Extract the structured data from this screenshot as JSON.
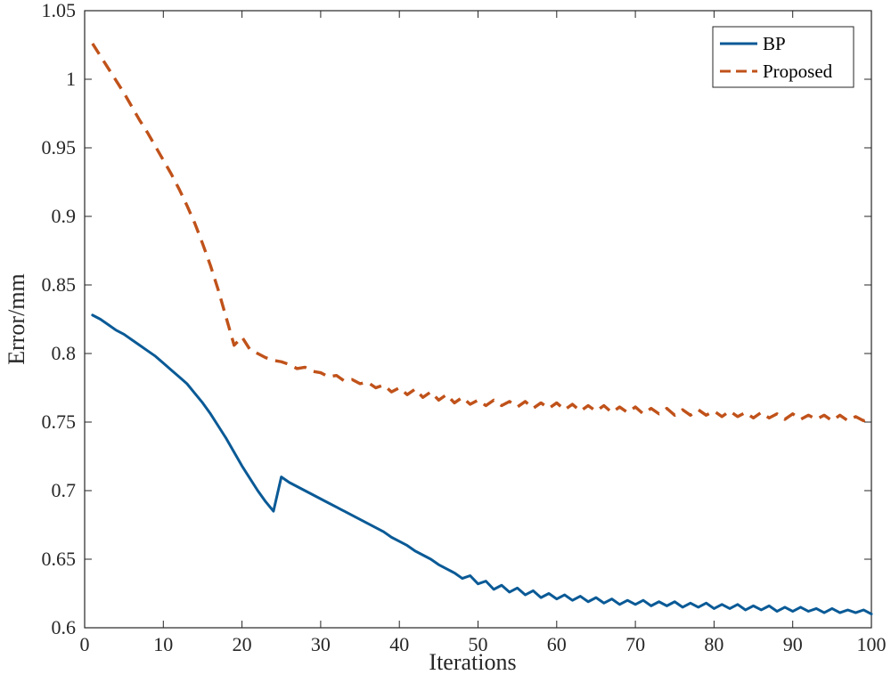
{
  "chart_data": {
    "type": "line",
    "title": "",
    "xlabel": "Iterations",
    "ylabel": "Error/mm",
    "xlim": [
      0,
      100
    ],
    "ylim": [
      0.6,
      1.05
    ],
    "xticks": [
      0,
      10,
      20,
      30,
      40,
      50,
      60,
      70,
      80,
      90,
      100
    ],
    "yticks": [
      0.6,
      0.65,
      0.7,
      0.75,
      0.8,
      0.85,
      0.9,
      0.95,
      1,
      1.05
    ],
    "ytick_labels": [
      "0.6",
      "0.65",
      "0.7",
      "0.75",
      "0.8",
      "0.85",
      "0.9",
      "0.95",
      "1",
      "1.05"
    ],
    "grid": false,
    "legend_position": "top-right",
    "series": [
      {
        "name": "BP",
        "color": "#0a5a96",
        "style": "solid",
        "x": [
          1,
          2,
          3,
          4,
          5,
          6,
          7,
          8,
          9,
          10,
          11,
          12,
          13,
          14,
          15,
          16,
          17,
          18,
          19,
          20,
          21,
          22,
          23,
          24,
          25,
          26,
          27,
          28,
          29,
          30,
          31,
          32,
          33,
          34,
          35,
          36,
          37,
          38,
          39,
          40,
          41,
          42,
          43,
          44,
          45,
          46,
          47,
          48,
          49,
          50,
          51,
          52,
          53,
          54,
          55,
          56,
          57,
          58,
          59,
          60,
          61,
          62,
          63,
          64,
          65,
          66,
          67,
          68,
          69,
          70,
          71,
          72,
          73,
          74,
          75,
          76,
          77,
          78,
          79,
          80,
          81,
          82,
          83,
          84,
          85,
          86,
          87,
          88,
          89,
          90,
          91,
          92,
          93,
          94,
          95,
          96,
          97,
          98,
          99,
          100
        ],
        "y": [
          0.828,
          0.825,
          0.821,
          0.817,
          0.814,
          0.81,
          0.806,
          0.802,
          0.798,
          0.793,
          0.788,
          0.783,
          0.778,
          0.771,
          0.764,
          0.756,
          0.747,
          0.738,
          0.728,
          0.718,
          0.709,
          0.7,
          0.692,
          0.685,
          0.71,
          0.706,
          0.703,
          0.7,
          0.697,
          0.694,
          0.691,
          0.688,
          0.685,
          0.682,
          0.679,
          0.676,
          0.673,
          0.67,
          0.666,
          0.663,
          0.66,
          0.656,
          0.653,
          0.65,
          0.646,
          0.643,
          0.64,
          0.636,
          0.638,
          0.632,
          0.634,
          0.628,
          0.631,
          0.626,
          0.629,
          0.624,
          0.627,
          0.622,
          0.625,
          0.621,
          0.624,
          0.62,
          0.623,
          0.619,
          0.622,
          0.618,
          0.621,
          0.617,
          0.62,
          0.617,
          0.62,
          0.616,
          0.619,
          0.616,
          0.619,
          0.615,
          0.618,
          0.615,
          0.618,
          0.614,
          0.617,
          0.614,
          0.617,
          0.613,
          0.616,
          0.613,
          0.616,
          0.612,
          0.615,
          0.612,
          0.615,
          0.612,
          0.614,
          0.611,
          0.614,
          0.611,
          0.613,
          0.611,
          0.613,
          0.61
        ]
      },
      {
        "name": "Proposed",
        "color": "#c0521a",
        "style": "dashed",
        "x": [
          1,
          2,
          3,
          4,
          5,
          6,
          7,
          8,
          9,
          10,
          11,
          12,
          13,
          14,
          15,
          16,
          17,
          18,
          19,
          20,
          21,
          22,
          23,
          24,
          25,
          26,
          27,
          28,
          29,
          30,
          31,
          32,
          33,
          34,
          35,
          36,
          37,
          38,
          39,
          40,
          41,
          42,
          43,
          44,
          45,
          46,
          47,
          48,
          49,
          50,
          51,
          52,
          53,
          54,
          55,
          56,
          57,
          58,
          59,
          60,
          61,
          62,
          63,
          64,
          65,
          66,
          67,
          68,
          69,
          70,
          71,
          72,
          73,
          74,
          75,
          76,
          77,
          78,
          79,
          80,
          81,
          82,
          83,
          84,
          85,
          86,
          87,
          88,
          89,
          90,
          91,
          92,
          93,
          94,
          95,
          96,
          97,
          98,
          99,
          100
        ],
        "y": [
          1.026,
          1.017,
          1.008,
          0.999,
          0.99,
          0.98,
          0.97,
          0.961,
          0.951,
          0.941,
          0.931,
          0.92,
          0.908,
          0.895,
          0.88,
          0.864,
          0.846,
          0.826,
          0.806,
          0.812,
          0.803,
          0.8,
          0.797,
          0.795,
          0.794,
          0.792,
          0.789,
          0.79,
          0.787,
          0.786,
          0.783,
          0.784,
          0.78,
          0.781,
          0.778,
          0.779,
          0.775,
          0.777,
          0.772,
          0.775,
          0.77,
          0.774,
          0.768,
          0.772,
          0.766,
          0.77,
          0.764,
          0.768,
          0.763,
          0.766,
          0.762,
          0.766,
          0.762,
          0.765,
          0.761,
          0.765,
          0.76,
          0.764,
          0.76,
          0.764,
          0.759,
          0.763,
          0.758,
          0.762,
          0.758,
          0.762,
          0.757,
          0.761,
          0.757,
          0.761,
          0.756,
          0.76,
          0.756,
          0.76,
          0.755,
          0.759,
          0.755,
          0.759,
          0.755,
          0.758,
          0.754,
          0.758,
          0.754,
          0.757,
          0.753,
          0.757,
          0.753,
          0.756,
          0.752,
          0.756,
          0.752,
          0.755,
          0.752,
          0.755,
          0.751,
          0.755,
          0.751,
          0.754,
          0.751,
          0.753
        ]
      }
    ]
  }
}
